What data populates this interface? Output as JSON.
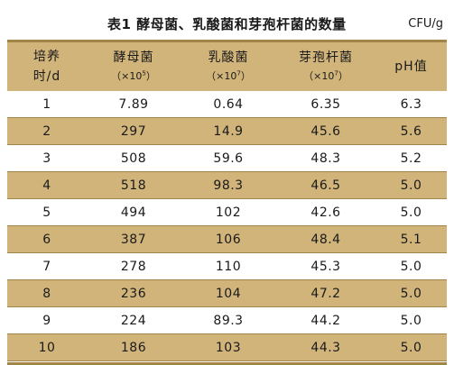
{
  "caption": {
    "title": "表1  酵母菌、乳酸菌和芽孢杆菌的数量",
    "unit": "CFU/g"
  },
  "table": {
    "headers": [
      {
        "line1": "培养",
        "line2": "时/d"
      },
      {
        "line1": "酵母菌",
        "unit_prefix": "（×10",
        "unit_exp": "5",
        "unit_suffix": "）"
      },
      {
        "line1": "乳酸菌",
        "unit_prefix": "（×10",
        "unit_exp": "7",
        "unit_suffix": "）"
      },
      {
        "line1": "芽孢杆菌",
        "unit_prefix": "（×10",
        "unit_exp": "7",
        "unit_suffix": "）"
      },
      {
        "line1": "pH值"
      }
    ],
    "rows": [
      [
        "1",
        "7.89",
        "0.64",
        "6.35",
        "6.3"
      ],
      [
        "2",
        "297",
        "14.9",
        "45.6",
        "5.6"
      ],
      [
        "3",
        "508",
        "59.6",
        "48.3",
        "5.2"
      ],
      [
        "4",
        "518",
        "98.3",
        "46.5",
        "5.0"
      ],
      [
        "5",
        "494",
        "102",
        "42.6",
        "5.0"
      ],
      [
        "6",
        "387",
        "106",
        "48.4",
        "5.1"
      ],
      [
        "7",
        "278",
        "110",
        "45.3",
        "5.0"
      ],
      [
        "8",
        "236",
        "104",
        "47.2",
        "5.0"
      ],
      [
        "9",
        "224",
        "89.3",
        "44.2",
        "5.0"
      ],
      [
        "10",
        "186",
        "103",
        "44.3",
        "5.0"
      ]
    ]
  },
  "colors": {
    "header_fill": "#d1b47a",
    "row_fill": "#d1b47a",
    "rule": "#a28449"
  }
}
